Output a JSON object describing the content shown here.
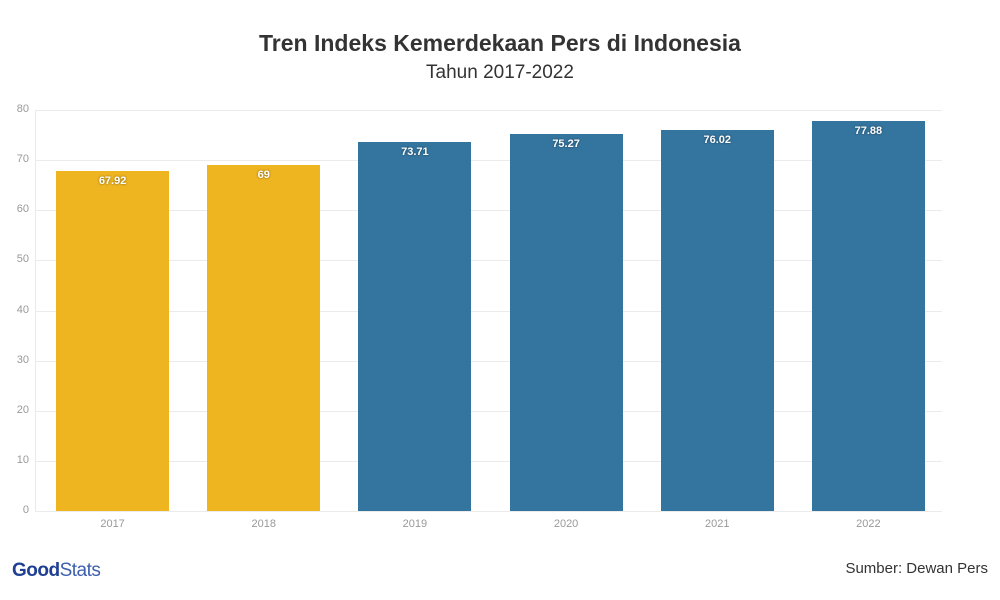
{
  "header": {
    "title": "Tren Indeks Kemerdekaan Pers di Indonesia",
    "subtitle": "Tahun 2017-2022"
  },
  "footer": {
    "logo_bold": "Good",
    "logo_light": "Stats",
    "source": "Sumber: Dewan Pers"
  },
  "chart_data": {
    "type": "bar",
    "title": "Tren Indeks Kemerdekaan Pers di Indonesia",
    "subtitle": "Tahun 2017-2022",
    "xlabel": "",
    "ylabel": "",
    "categories": [
      "2017",
      "2018",
      "2019",
      "2020",
      "2021",
      "2022"
    ],
    "values": [
      67.92,
      69,
      73.71,
      75.27,
      76.02,
      77.88
    ],
    "value_labels": [
      "67.92",
      "69",
      "73.71",
      "75.27",
      "76.02",
      "77.88"
    ],
    "colors": [
      "#efb520",
      "#efb520",
      "#34759f",
      "#34759f",
      "#34759f",
      "#34759f"
    ],
    "ylim": [
      0,
      80
    ],
    "yticks": [
      "0",
      "10",
      "20",
      "30",
      "40",
      "50",
      "60",
      "70",
      "80"
    ],
    "grid": true,
    "legend": null,
    "source": "Sumber: Dewan Pers"
  }
}
